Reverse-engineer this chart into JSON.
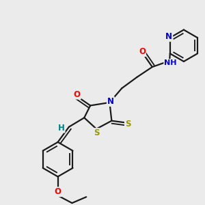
{
  "background_color": "#ebebeb",
  "atom_colors": {
    "C": "#000000",
    "H": "#008080",
    "N": "#0000cc",
    "O": "#ff0000",
    "S": "#999900"
  },
  "bond_color": "#1a1a1a",
  "bond_width": 1.6,
  "figsize": [
    3.0,
    3.0
  ],
  "dpi": 100
}
